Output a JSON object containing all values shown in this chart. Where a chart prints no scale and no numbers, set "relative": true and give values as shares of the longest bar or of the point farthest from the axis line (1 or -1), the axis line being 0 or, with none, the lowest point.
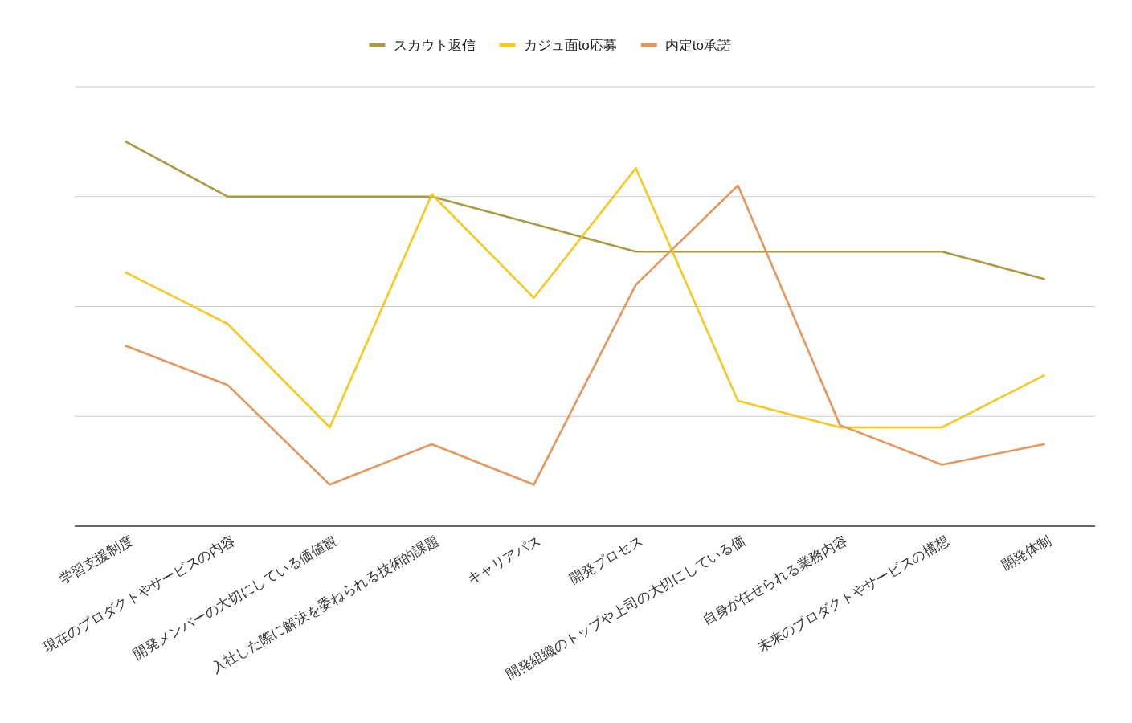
{
  "chart_data": {
    "type": "line",
    "relative": true,
    "grid": true,
    "legend": "top",
    "categories": [
      "学習支援制度",
      "現在のプロダクトやサービスの内容",
      "開発メンバーの大切にしている価値観",
      "入社した際に解決を委ねられる技術的課題",
      "キャリアパス",
      "開発プロセス",
      "開発組織のトップや上司の大切にしている価",
      "自身が任せられる業務内容",
      "未来のプロダクトやサービスの構想",
      "開発体制"
    ],
    "series": [
      {
        "name": "スカウト返信",
        "color": "#ab9a3e",
        "values": [
          1,
          0.857,
          0.857,
          0.857,
          0.786,
          0.714,
          0.714,
          0.714,
          0.714,
          0.643
        ]
      },
      {
        "name": "カジュ面to応募",
        "color": "#f9c81a",
        "values": [
          0.66,
          0.526,
          0.257,
          0.863,
          0.594,
          0.931,
          0.326,
          0.257,
          0.257,
          0.392
        ]
      },
      {
        "name": "内定to承諾",
        "color": "#e8955a",
        "values": [
          0.469,
          0.367,
          0.108,
          0.213,
          0.108,
          0.628,
          0.886,
          0.263,
          0.16,
          0.213
        ]
      }
    ]
  }
}
